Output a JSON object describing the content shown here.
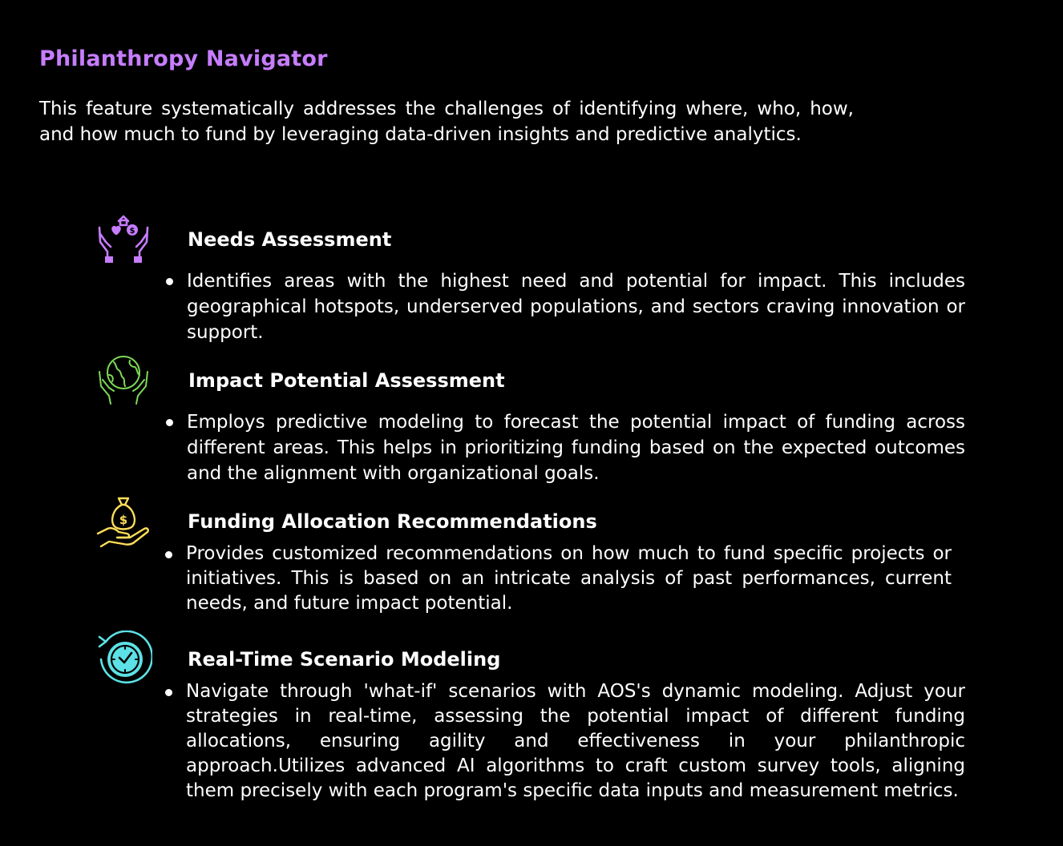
{
  "title": "Philanthropy Navigator",
  "intro": "This feature systematically addresses the challenges of identifying where, who, how, and how much to fund by leveraging data-driven insights and predictive analytics.",
  "colors": {
    "title": "#c77dff",
    "needs_icon": "#c77dff",
    "impact_icon": "#7ed957",
    "funding_icon": "#ffde59",
    "realtime_icon": "#5ce1e6"
  },
  "sections": [
    {
      "icon": "hands-heart-coin-icon",
      "heading": "Needs Assessment",
      "text": "Identifies areas with the highest need and potential for impact. This includes geographical hotspots, underserved populations, and sectors craving innovation or support."
    },
    {
      "icon": "globe-in-hands-icon",
      "heading": "Impact Potential Assessment",
      "text": "Employs predictive modeling to forecast the potential impact of funding across different areas. This helps in prioritizing funding based on the expected outcomes and the alignment with organizational goals."
    },
    {
      "icon": "money-bag-hand-icon",
      "heading": "Funding Allocation Recommendations",
      "text": "Provides customized recommendations on how much to fund specific projects or initiatives. This is based on an intricate analysis of past performances, current needs, and future impact potential."
    },
    {
      "icon": "clock-refresh-icon",
      "heading": "Real-Time Scenario Modeling",
      "text": "Navigate through 'what-if' scenarios with AOS's dynamic modeling. Adjust your strategies in real-time, assessing the potential impact of different funding allocations, ensuring agility and effectiveness in your philanthropic approach.Utilizes advanced AI algorithms to craft custom survey tools, aligning them precisely with each program's specific data inputs and measurement metrics."
    }
  ]
}
